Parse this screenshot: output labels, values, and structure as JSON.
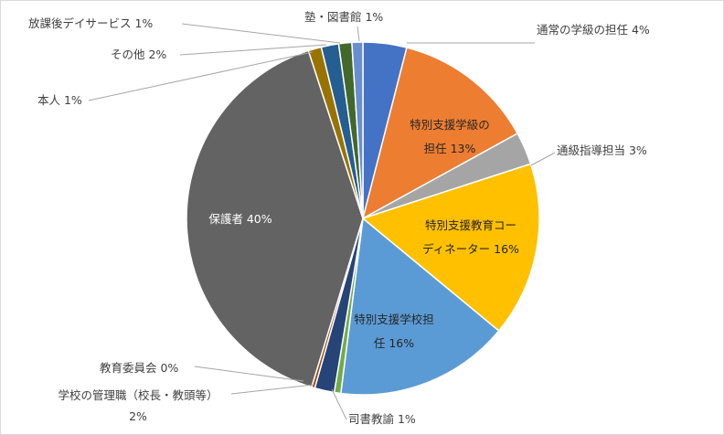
{
  "chart_data": {
    "type": "pie",
    "title": "",
    "slices": [
      {
        "label": "通常の学級の担任 4%",
        "value": 4,
        "color": "#4472c4"
      },
      {
        "label_lines": [
          "特別支援学級の",
          "担任 13%"
        ],
        "value": 13,
        "color": "#ed7d31"
      },
      {
        "label": "通級指導担当 3%",
        "value": 3,
        "color": "#a5a5a5"
      },
      {
        "label_lines": [
          "特別支援教育コー",
          "ディネーター 16%"
        ],
        "value": 16,
        "color": "#ffc000"
      },
      {
        "label_lines": [
          "特別支援学校担",
          "任 16%"
        ],
        "value": 16,
        "color": "#5b9bd5"
      },
      {
        "label": "司書教諭 1%",
        "value": 0.6,
        "color": "#70ad47"
      },
      {
        "label_lines": [
          "学校の管理職（校長・教頭等）",
          "2%"
        ],
        "value": 1.8,
        "color": "#264478"
      },
      {
        "label": "教育委員会 0%",
        "value": 0.3,
        "color": "#9e480e"
      },
      {
        "label": "保護者 40%",
        "value": 40.3,
        "color": "#636363"
      },
      {
        "label": "本人 1%",
        "value": 1.2,
        "color": "#997300"
      },
      {
        "label": "その他 2%",
        "value": 1.6,
        "color": "#255e91"
      },
      {
        "label": "放課後デイサービス 1%",
        "value": 1.2,
        "color": "#43682b"
      },
      {
        "label": "塾・図書館 1%",
        "value": 1.0,
        "color": "#698ed0"
      }
    ]
  }
}
